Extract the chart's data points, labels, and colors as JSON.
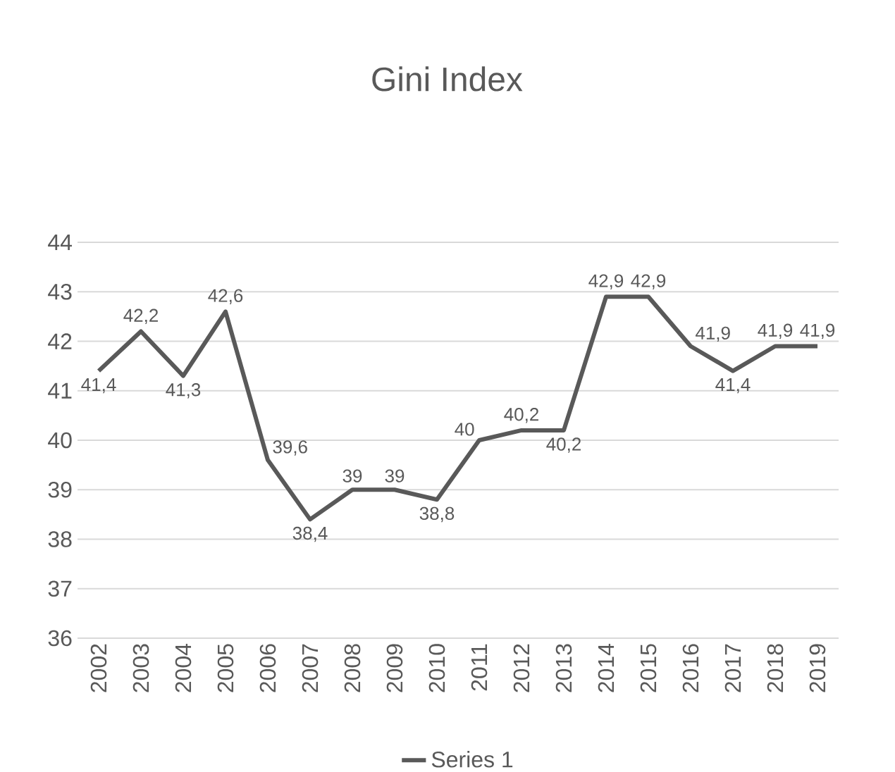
{
  "chart_data": {
    "type": "line",
    "title": "Gini Index",
    "categories": [
      "2002",
      "2003",
      "2004",
      "2005",
      "2006",
      "2007",
      "2008",
      "2009",
      "2010",
      "2011",
      "2012",
      "2013",
      "2014",
      "2015",
      "2016",
      "2017",
      "2018",
      "2019"
    ],
    "series": [
      {
        "name": "Series 1",
        "color": "#595959",
        "values": [
          41.4,
          42.2,
          41.3,
          42.6,
          39.6,
          38.4,
          39,
          39,
          38.8,
          40,
          40.2,
          40.2,
          42.9,
          42.9,
          41.9,
          41.4,
          41.9,
          41.9
        ],
        "value_labels": [
          "41,4",
          "42,2",
          "41,3",
          "42,6",
          "39,6",
          "38,4",
          "39",
          "39",
          "38,8",
          "40",
          "40,2",
          "40,2",
          "42,9",
          "42,9",
          "41,9",
          "41,4",
          "41,9",
          "41,9"
        ]
      }
    ],
    "ylim": [
      36,
      44
    ],
    "yticks": [
      36,
      37,
      38,
      39,
      40,
      41,
      42,
      43,
      44
    ],
    "grid": "y",
    "legend": "bottom",
    "marker": "none",
    "line_style": "solid"
  }
}
